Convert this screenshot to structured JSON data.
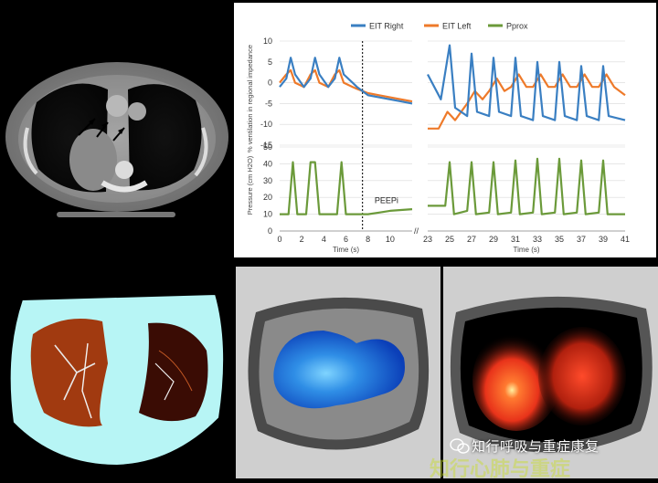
{
  "chart_data": {
    "type": "line",
    "legend": {
      "placement": "top",
      "entries": [
        "EIT Right",
        "EIT Left",
        "Pprox"
      ]
    },
    "top_panel": {
      "ylabel": "% ventilation in regional impedance",
      "ylim": [
        -15,
        10
      ],
      "yticks": [
        "10",
        "5",
        "0",
        "-5",
        "-10",
        "-15"
      ],
      "series": [
        {
          "name": "EIT Right",
          "color": "#3a7fc2"
        },
        {
          "name": "EIT Left",
          "color": "#ee7a2a"
        }
      ]
    },
    "bottom_panel": {
      "ylabel": "Pressure (cm H2O)",
      "ylim": [
        0,
        50
      ],
      "yticks": [
        "50",
        "40",
        "30",
        "20",
        "10",
        "0"
      ],
      "series": [
        {
          "name": "Pprox",
          "color": "#6b9a3a"
        }
      ],
      "annotation": "PEEPi",
      "left_segment": {
        "x": [
          0,
          0.8,
          1.2,
          1.6,
          2.4,
          2.8,
          3.2,
          3.6,
          4.4,
          5.2,
          5.6,
          6.0,
          7.0,
          8.0,
          9.0,
          10.0,
          11.0,
          12.0
        ],
        "y": [
          10,
          10,
          41,
          10,
          10,
          41,
          41,
          10,
          10,
          10,
          41,
          10,
          10,
          10,
          11,
          12,
          12.5,
          13
        ]
      },
      "right_segment": {
        "x": [
          23,
          24.6,
          25,
          25.4,
          26.6,
          27,
          27.4,
          28.6,
          29,
          29.4,
          30.6,
          31,
          31.4,
          32.6,
          33,
          33.4,
          34.6,
          35,
          35.4,
          36.6,
          37,
          37.4,
          38.6,
          39,
          39.4,
          41
        ],
        "y": [
          15,
          15,
          41,
          10,
          12,
          41,
          10,
          11,
          41,
          10,
          11,
          42,
          10,
          11,
          43,
          10,
          11,
          43,
          10,
          11,
          42,
          10,
          11,
          42,
          10,
          10
        ]
      }
    },
    "x_left": {
      "label": "Time (s)",
      "ticks": [
        "0",
        "2",
        "4",
        "6",
        "8",
        "10"
      ],
      "xlim": [
        0,
        12
      ]
    },
    "x_right": {
      "label": "Time (s)",
      "ticks": [
        "23",
        "25",
        "27",
        "29",
        "31",
        "33",
        "35",
        "37",
        "39",
        "41"
      ],
      "xlim": [
        23,
        41
      ]
    },
    "dotted_line_x": 7.5,
    "eit_right_left": {
      "x": [
        0,
        0.6,
        1.0,
        1.4,
        2.2,
        2.8,
        3.2,
        3.6,
        4.4,
        5.0,
        5.4,
        5.8,
        6.6,
        7.0,
        7.5,
        8.0,
        9.0,
        10.0,
        11.0,
        12.0
      ],
      "y": [
        -1,
        1,
        6,
        2,
        -1,
        1,
        6,
        2,
        -1,
        1,
        6,
        2,
        0,
        -1,
        -2,
        -3,
        -3.5,
        -4,
        -4.5,
        -5
      ]
    },
    "eit_left_left": {
      "x": [
        0,
        0.6,
        1.0,
        1.4,
        2.2,
        2.8,
        3.2,
        3.6,
        4.4,
        5.0,
        5.4,
        5.8,
        6.6,
        7.0,
        7.5,
        8.0,
        9.0,
        10.0,
        11.0,
        12.0
      ],
      "y": [
        0,
        2,
        3,
        0,
        -1,
        2,
        3,
        0,
        -1,
        2,
        3,
        0,
        -1,
        -1.5,
        -2,
        -2.5,
        -3,
        -3.5,
        -4,
        -4.5
      ]
    },
    "eit_right_right": {
      "x": [
        23,
        24.2,
        25,
        25.5,
        26.6,
        27,
        27.5,
        28.6,
        29,
        29.5,
        30.6,
        31,
        31.5,
        32.6,
        33,
        33.5,
        34.6,
        35,
        35.5,
        36.6,
        37,
        37.5,
        38.6,
        39,
        39.5,
        41
      ],
      "y": [
        2,
        -4,
        9,
        -6,
        -8,
        7,
        -7,
        -8,
        6,
        -7,
        -8,
        6,
        -8,
        -9,
        5,
        -8,
        -9,
        5,
        -8,
        -9,
        4,
        -8,
        -9,
        4,
        -8,
        -9
      ]
    },
    "eit_left_right": {
      "x": [
        23,
        24,
        24.8,
        25.5,
        26.6,
        27.3,
        28,
        28.6,
        29.3,
        30,
        30.6,
        31.3,
        32,
        32.6,
        33.3,
        34,
        34.6,
        35.3,
        36,
        36.6,
        37.3,
        38,
        38.6,
        39.3,
        40,
        41
      ],
      "y": [
        -11,
        -11,
        -7,
        -9,
        -5,
        -2,
        -4,
        -2,
        1,
        -2,
        -1,
        2,
        -1,
        -1,
        2,
        -1,
        -1,
        2,
        -1,
        -1,
        2,
        -1,
        -1,
        2,
        -1,
        -3
      ]
    }
  },
  "ct_arrows": 2,
  "watermark": {
    "text": "知行呼吸与重症康复",
    "faded": "知行心肺与重症"
  },
  "colors": {
    "seg_cyan": "#b7f5f5",
    "seg_lung": "#a13a10",
    "eit_blue": "#2f8ee6",
    "eit_red": "#e8331a"
  }
}
